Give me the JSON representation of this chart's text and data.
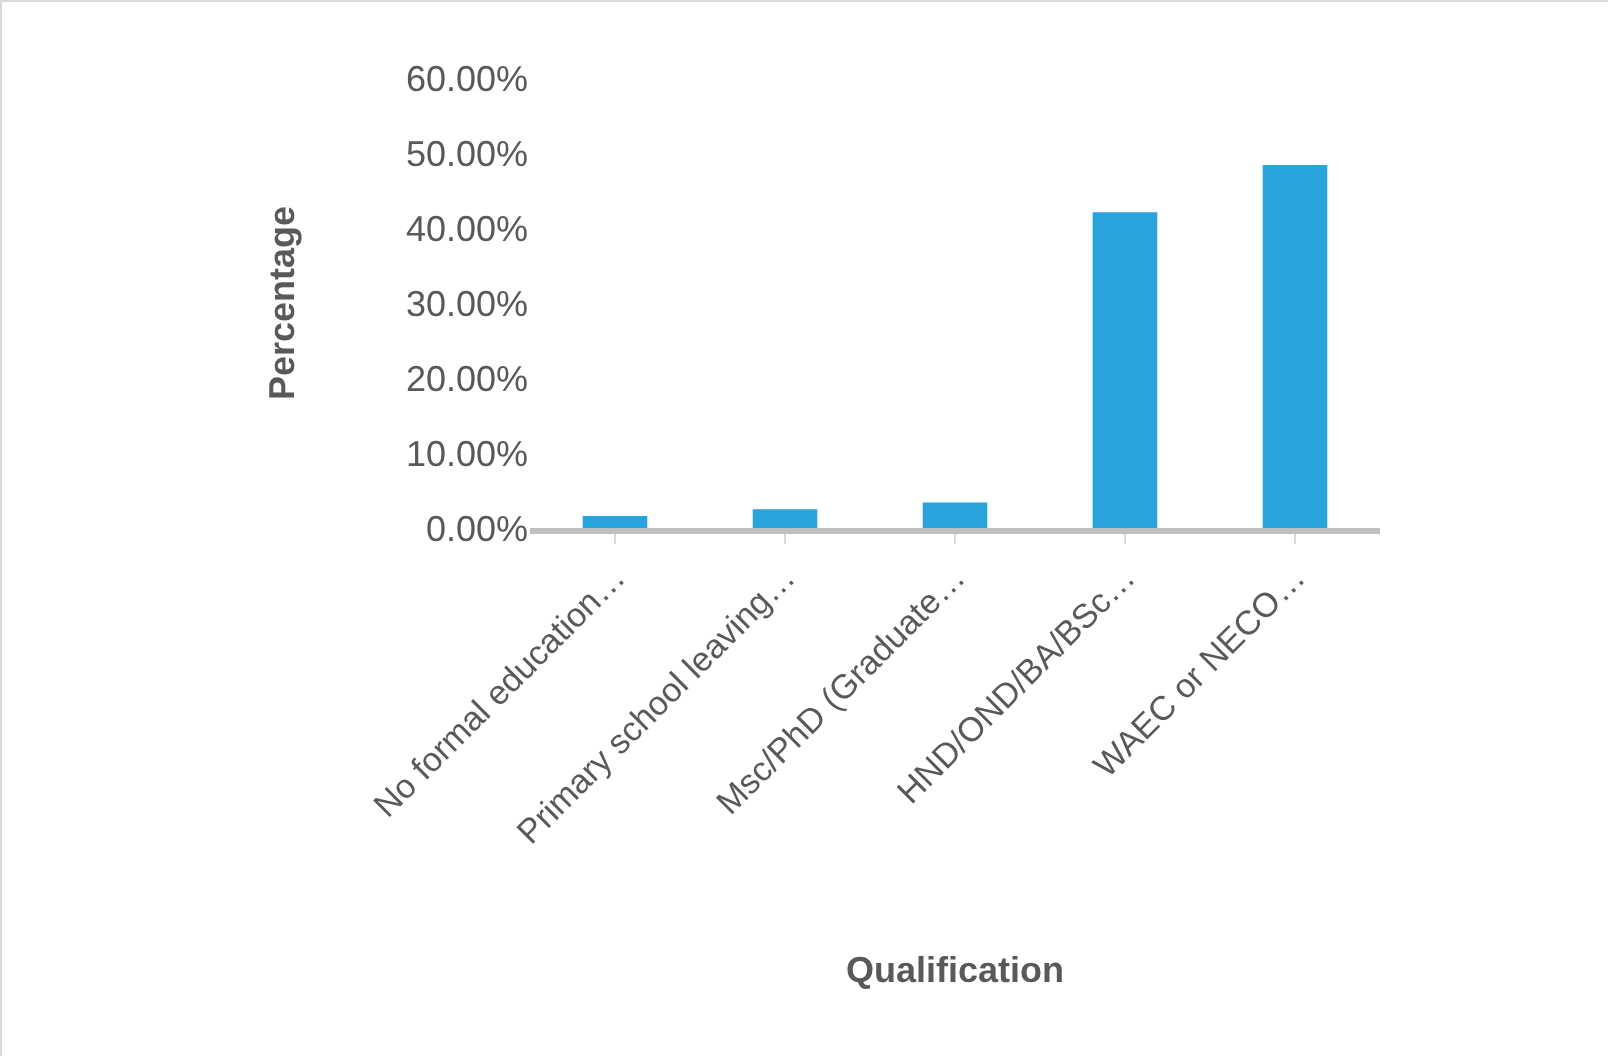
{
  "chart_data": {
    "type": "bar",
    "xlabel": "Qualification",
    "ylabel": "Percentage",
    "categories": [
      "No formal education…",
      "Primary school leaving…",
      "Msc/PhD (Graduate…",
      "HND/OND/BA/BSc…",
      "WAEC or NECO…"
    ],
    "values": [
      1.6,
      2.5,
      3.4,
      42.1,
      48.4
    ],
    "color": "#29a3db",
    "ylim": [
      0,
      60
    ],
    "yticks": [
      {
        "value": 0,
        "label": "0.00%"
      },
      {
        "value": 10,
        "label": "10.00%"
      },
      {
        "value": 20,
        "label": "20.00%"
      },
      {
        "value": 30,
        "label": "30.00%"
      },
      {
        "value": 40,
        "label": "40.00%"
      },
      {
        "value": 50,
        "label": "50.00%"
      },
      {
        "value": 60,
        "label": "60.00%"
      }
    ],
    "grid": false
  }
}
